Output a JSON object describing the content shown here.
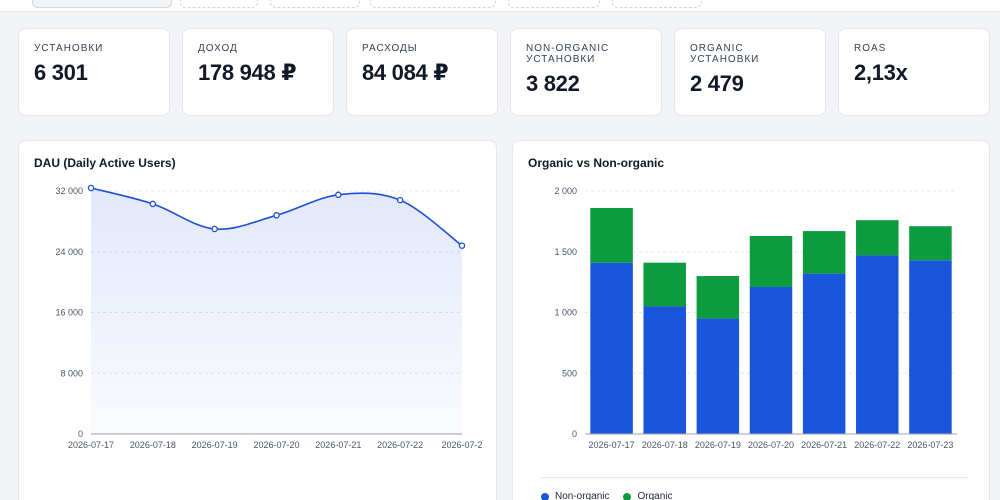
{
  "kpis": [
    {
      "label": "УСТАНОВКИ",
      "value": "6 301"
    },
    {
      "label": "ДОХОД",
      "value": "178 948 ₽"
    },
    {
      "label": "РАСХОДЫ",
      "value": "84 084 ₽"
    },
    {
      "label": "NON-ORGANIC УСТАНОВКИ",
      "value": "3 822"
    },
    {
      "label": "ORGANIC УСТАНОВКИ",
      "value": "2 479"
    },
    {
      "label": "ROAS",
      "value": "2,13x"
    }
  ],
  "colors": {
    "line": "#1e4fd6",
    "nonorganic": "#1a56db",
    "organic": "#0d9b3f"
  },
  "chart_data": [
    {
      "type": "area",
      "title": "DAU (Daily Active Users)",
      "x": [
        "2026-07-17",
        "2026-07-18",
        "2026-07-19",
        "2026-07-20",
        "2026-07-21",
        "2026-07-22",
        "2026-07-2"
      ],
      "series": [
        {
          "values": [
            32400,
            30300,
            27000,
            28800,
            31500,
            30800,
            24800
          ]
        }
      ],
      "yticks": [
        "0",
        "8 000",
        "16 000",
        "24 000",
        "32 000"
      ],
      "ylim": [
        0,
        32000
      ],
      "grid": true
    },
    {
      "type": "bar",
      "stacked": true,
      "title": "Organic vs Non-organic",
      "categories": [
        "2026-07-17",
        "2026-07-18",
        "2026-07-19",
        "2026-07-20",
        "2026-07-21",
        "2026-07-22",
        "2026-07-23"
      ],
      "series": [
        {
          "name": "Non-organic",
          "values": [
            1410,
            1050,
            950,
            1210,
            1320,
            1470,
            1430
          ]
        },
        {
          "name": "Organic",
          "values": [
            450,
            360,
            350,
            420,
            350,
            290,
            280
          ]
        }
      ],
      "yticks": [
        "0",
        "500",
        "1 000",
        "1 500",
        "2 000"
      ],
      "ylim": [
        0,
        2000
      ],
      "grid": true,
      "legend": "bottom"
    }
  ]
}
